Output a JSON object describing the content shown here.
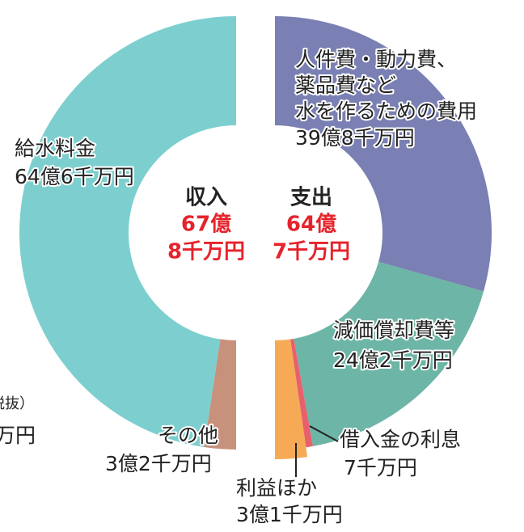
{
  "chart_data": {
    "type": "split-donut",
    "notes": [
      "税抜）",
      "万円"
    ],
    "halves": [
      {
        "title": "収入",
        "total": 67.8,
        "total_label_lines": [
          "67億",
          "8千万円"
        ],
        "slices": [
          {
            "label_lines": [
              "給水料金"
            ],
            "value": 64.6,
            "value_label": "64億6千万円",
            "color": "#7dcfcf"
          },
          {
            "label_lines": [
              "その他"
            ],
            "value": 3.2,
            "value_label": "3億2千万円",
            "color": "#c8917c"
          }
        ]
      },
      {
        "title": "支出",
        "total": 64.7,
        "total_label_lines": [
          "64億",
          "7千万円"
        ],
        "slices": [
          {
            "label_lines": [
              "人件費・動力費、",
              "薬品費など",
              "水を作るための費用"
            ],
            "value": 39.8,
            "value_label": "39億8千万円",
            "color": "#7a80b3"
          },
          {
            "label_lines": [
              "減価償却費等"
            ],
            "value": 24.2,
            "value_label": "24億2千万円",
            "color": "#6db5a6"
          },
          {
            "label_lines": [
              "借入金の利息"
            ],
            "value": 0.7,
            "value_label": "7千万円",
            "color": "#e9606d"
          },
          {
            "label_lines": [
              "利益ほか"
            ],
            "value": 3.1,
            "value_label": "3億1千万円",
            "color": "#f6aa55"
          }
        ]
      }
    ]
  }
}
